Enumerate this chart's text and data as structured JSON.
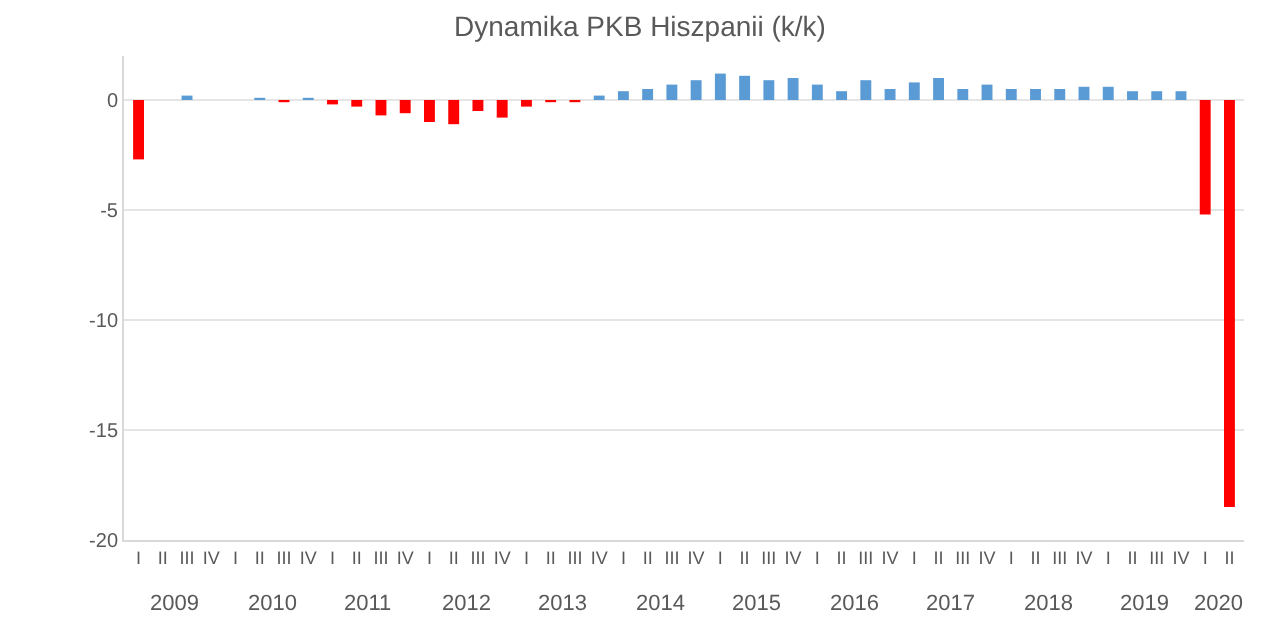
{
  "chart_data": {
    "type": "bar",
    "title": "Dynamika PKB Hiszpanii (k/k)",
    "categories": [
      "I",
      "II",
      "III",
      "IV",
      "I",
      "II",
      "III",
      "IV",
      "I",
      "II",
      "III",
      "IV",
      "I",
      "II",
      "III",
      "IV",
      "I",
      "II",
      "III",
      "IV",
      "I",
      "II",
      "III",
      "IV",
      "I",
      "II",
      "III",
      "IV",
      "I",
      "II",
      "III",
      "IV",
      "I",
      "II",
      "III",
      "IV",
      "I",
      "II",
      "III",
      "IV",
      "I",
      "II",
      "III",
      "IV",
      "I",
      "II"
    ],
    "values": [
      -2.7,
      0,
      0.2,
      0,
      0,
      0.1,
      -0.1,
      0.1,
      -0.2,
      -0.3,
      -0.7,
      -0.6,
      -1.0,
      -1.1,
      -0.5,
      -0.8,
      -0.3,
      -0.1,
      -0.1,
      0.2,
      0.4,
      0.5,
      0.7,
      0.9,
      1.2,
      1.1,
      0.9,
      1.0,
      0.7,
      0.4,
      0.9,
      0.5,
      0.8,
      1.0,
      0.5,
      0.7,
      0.5,
      0.5,
      0.5,
      0.6,
      0.6,
      0.4,
      0.4,
      0.4,
      -5.2,
      -18.5
    ],
    "colors": [
      "#ff0000",
      "#ff0000",
      "#5b9bd5",
      "#ff0000",
      "#5b9bd5",
      "#5b9bd5",
      "#ff0000",
      "#5b9bd5",
      "#ff0000",
      "#ff0000",
      "#ff0000",
      "#ff0000",
      "#ff0000",
      "#ff0000",
      "#ff0000",
      "#ff0000",
      "#ff0000",
      "#ff0000",
      "#ff0000",
      "#5b9bd5",
      "#5b9bd5",
      "#5b9bd5",
      "#5b9bd5",
      "#5b9bd5",
      "#5b9bd5",
      "#5b9bd5",
      "#5b9bd5",
      "#5b9bd5",
      "#5b9bd5",
      "#5b9bd5",
      "#5b9bd5",
      "#5b9bd5",
      "#5b9bd5",
      "#5b9bd5",
      "#5b9bd5",
      "#5b9bd5",
      "#5b9bd5",
      "#5b9bd5",
      "#5b9bd5",
      "#5b9bd5",
      "#5b9bd5",
      "#5b9bd5",
      "#5b9bd5",
      "#5b9bd5",
      "#ff0000",
      "#ff0000"
    ],
    "ylim": [
      -20,
      2
    ],
    "yticks": [
      -20,
      -15,
      -10,
      -5,
      0
    ],
    "grid": "y",
    "annotations": [
      "2009",
      "2010",
      "2011",
      "2012",
      "2013",
      "2014",
      "2015",
      "2016",
      "2017",
      "2018",
      "2019",
      "2020"
    ]
  }
}
